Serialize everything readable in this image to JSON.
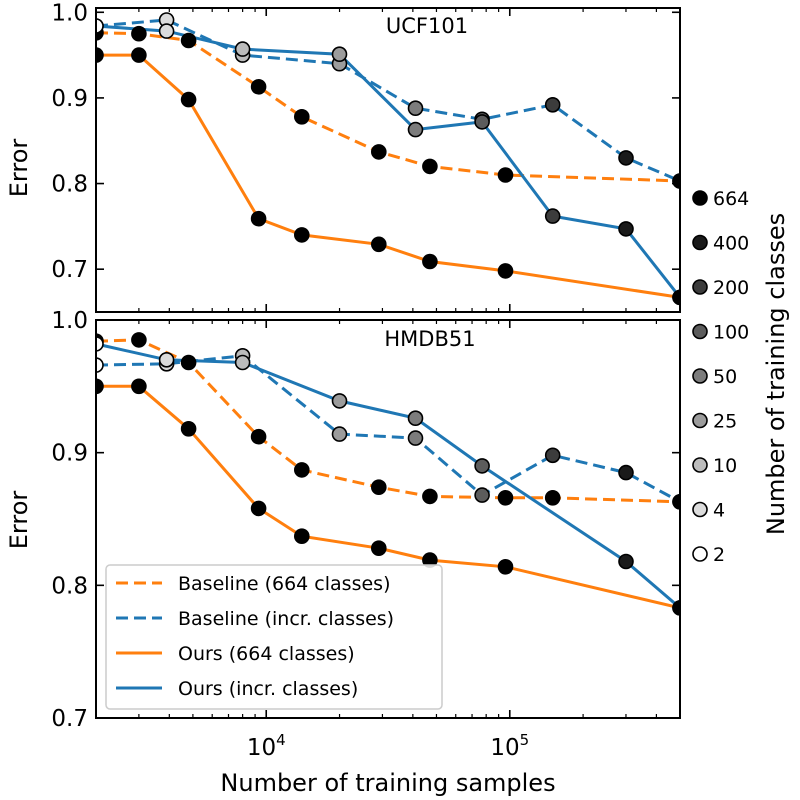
{
  "figure": {
    "xlabel": "Number of training samples",
    "x_ticks": [
      {
        "value": 10000,
        "base": "10",
        "exp": "4"
      },
      {
        "value": 100000,
        "base": "10",
        "exp": "5"
      }
    ],
    "side_legend": {
      "title": "Number of training classes",
      "items": [
        {
          "label": "664",
          "color": "#000000"
        },
        {
          "label": "400",
          "color": "#1a1a1a"
        },
        {
          "label": "200",
          "color": "#3c3c3c"
        },
        {
          "label": "100",
          "color": "#5c5c5c"
        },
        {
          "label": "50",
          "color": "#7c7c7c"
        },
        {
          "label": "25",
          "color": "#9c9c9c"
        },
        {
          "label": "10",
          "color": "#bcbcbc"
        },
        {
          "label": "4",
          "color": "#dcdcdc"
        },
        {
          "label": "2",
          "color": "#ffffff"
        }
      ]
    },
    "legend": [
      {
        "label": "Baseline (664 classes)",
        "color": "#ff7f0e",
        "dashed": true
      },
      {
        "label": "Baseline (incr. classes)",
        "color": "#1f77b4",
        "dashed": true
      },
      {
        "label": "Ours (664 classes)",
        "color": "#ff7f0e",
        "dashed": false
      },
      {
        "label": "Ours (incr. classes)",
        "color": "#1f77b4",
        "dashed": false
      }
    ]
  },
  "chart_data": [
    {
      "type": "line",
      "title": "UCF101",
      "ylabel": "Error",
      "xscale": "log",
      "xlim": [
        2000,
        500000
      ],
      "ylim": [
        0.65,
        1.005
      ],
      "yticks": [
        "1.0",
        "0.9",
        "0.8",
        "0.7"
      ],
      "ytick_values": [
        1.0,
        0.9,
        0.8,
        0.7
      ],
      "series": [
        {
          "name": "Baseline (664 classes)",
          "color": "#ff7f0e",
          "dashed": true,
          "x": [
            2000,
            3000,
            4800,
            9300,
            14000,
            29000,
            47000,
            96000,
            500000
          ],
          "y": [
            0.976,
            0.975,
            0.967,
            0.913,
            0.878,
            0.837,
            0.82,
            0.81,
            0.803
          ],
          "classes": [
            664,
            664,
            664,
            664,
            664,
            664,
            664,
            664,
            664
          ]
        },
        {
          "name": "Baseline (incr. classes)",
          "color": "#1f77b4",
          "dashed": true,
          "x": [
            2000,
            3900,
            8000,
            20000,
            41000,
            77000,
            150000,
            300000,
            500000
          ],
          "y": [
            0.984,
            0.991,
            0.95,
            0.94,
            0.888,
            0.875,
            0.892,
            0.83,
            0.803
          ],
          "classes": [
            2,
            4,
            10,
            25,
            50,
            100,
            200,
            400,
            664
          ]
        },
        {
          "name": "Ours (664 classes)",
          "color": "#ff7f0e",
          "dashed": false,
          "x": [
            2000,
            3000,
            4800,
            9300,
            14000,
            29000,
            47000,
            96000,
            500000
          ],
          "y": [
            0.95,
            0.95,
            0.898,
            0.759,
            0.74,
            0.729,
            0.709,
            0.698,
            0.667
          ],
          "classes": [
            664,
            664,
            664,
            664,
            664,
            664,
            664,
            664,
            664
          ]
        },
        {
          "name": "Ours (incr. classes)",
          "color": "#1f77b4",
          "dashed": false,
          "x": [
            2000,
            3900,
            8000,
            20000,
            41000,
            77000,
            150000,
            300000,
            500000
          ],
          "y": [
            0.984,
            0.978,
            0.957,
            0.951,
            0.863,
            0.872,
            0.762,
            0.747,
            0.667
          ],
          "classes": [
            2,
            4,
            10,
            25,
            50,
            100,
            200,
            400,
            664
          ]
        }
      ]
    },
    {
      "type": "line",
      "title": "HMDB51",
      "ylabel": "Error",
      "xscale": "log",
      "xlim": [
        2000,
        500000
      ],
      "ylim": [
        0.7,
        1.0
      ],
      "yticks": [
        "1.0",
        "0.9",
        "0.8",
        "0.7"
      ],
      "ytick_values": [
        1.0,
        0.9,
        0.8,
        0.7
      ],
      "series": [
        {
          "name": "Baseline (664 classes)",
          "color": "#ff7f0e",
          "dashed": true,
          "x": [
            2000,
            3000,
            4800,
            9300,
            14000,
            29000,
            47000,
            96000,
            150000,
            500000
          ],
          "y": [
            0.984,
            0.985,
            0.968,
            0.912,
            0.887,
            0.874,
            0.867,
            0.866,
            0.866,
            0.863
          ],
          "classes": [
            664,
            664,
            664,
            664,
            664,
            664,
            664,
            664,
            664,
            664
          ]
        },
        {
          "name": "Baseline (incr. classes)",
          "color": "#1f77b4",
          "dashed": true,
          "x": [
            2000,
            3900,
            8000,
            20000,
            41000,
            77000,
            150000,
            300000,
            500000
          ],
          "y": [
            0.966,
            0.967,
            0.973,
            0.914,
            0.911,
            0.868,
            0.898,
            0.885,
            0.863
          ],
          "classes": [
            2,
            4,
            10,
            25,
            50,
            100,
            200,
            400,
            664
          ]
        },
        {
          "name": "Ours (664 classes)",
          "color": "#ff7f0e",
          "dashed": false,
          "x": [
            2000,
            3000,
            4800,
            9300,
            14000,
            29000,
            47000,
            96000,
            500000
          ],
          "y": [
            0.95,
            0.95,
            0.918,
            0.858,
            0.837,
            0.828,
            0.819,
            0.814,
            0.783
          ],
          "classes": [
            664,
            664,
            664,
            664,
            664,
            664,
            664,
            664,
            664
          ]
        },
        {
          "name": "Ours (incr. classes)",
          "color": "#1f77b4",
          "dashed": false,
          "x": [
            2000,
            3900,
            8000,
            20000,
            41000,
            77000,
            300000,
            500000
          ],
          "y": [
            0.982,
            0.97,
            0.968,
            0.939,
            0.926,
            0.89,
            0.818,
            0.783
          ],
          "classes": [
            2,
            4,
            10,
            25,
            50,
            100,
            400,
            664
          ]
        }
      ]
    }
  ]
}
